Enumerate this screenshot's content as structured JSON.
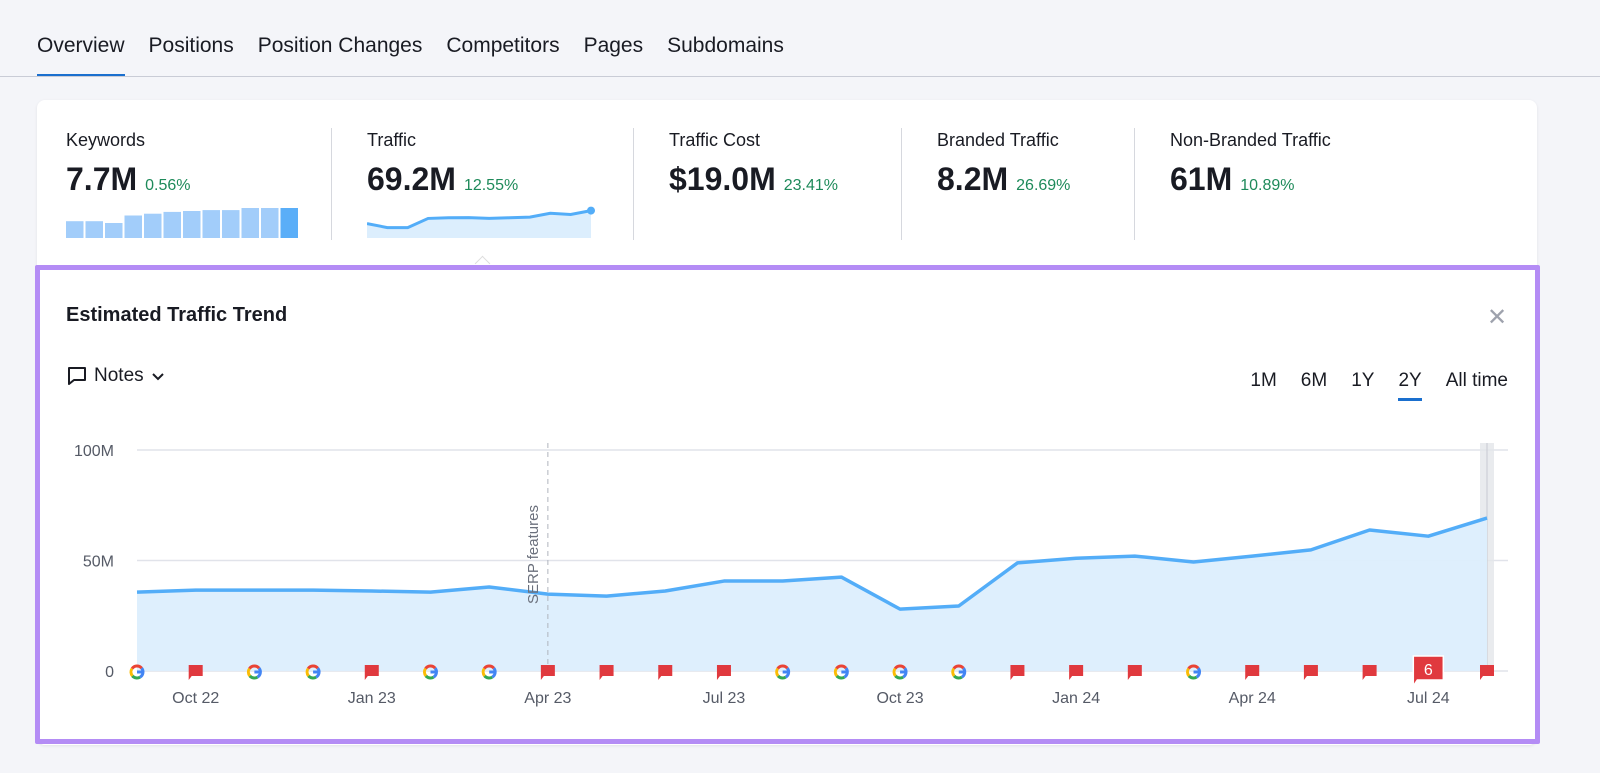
{
  "tabs": [
    "Overview",
    "Positions",
    "Position Changes",
    "Competitors",
    "Pages",
    "Subdomains"
  ],
  "active_tab": "Overview",
  "metrics": [
    {
      "label": "Keywords",
      "value": "7.7M",
      "change": "0.56%"
    },
    {
      "label": "Traffic",
      "value": "69.2M",
      "change": "12.55%"
    },
    {
      "label": "Traffic Cost",
      "value": "$19.0M",
      "change": "23.41%"
    },
    {
      "label": "Branded Traffic",
      "value": "8.2M",
      "change": "26.69%"
    },
    {
      "label": "Non-Branded Traffic",
      "value": "61M",
      "change": "10.89%"
    }
  ],
  "keywords_sparkbars": [
    0.56,
    0.56,
    0.5,
    0.75,
    0.81,
    0.87,
    0.9,
    0.93,
    0.93,
    1,
    1,
    1
  ],
  "traffic_sparkline": [
    36,
    33,
    33,
    40,
    40.5,
    40.6,
    40,
    40.5,
    41,
    44,
    43,
    46
  ],
  "trend": {
    "title": "Estimated Traffic Trend",
    "notes_label": "Notes",
    "close_icon": "close-icon",
    "ranges": [
      "1M",
      "6M",
      "1Y",
      "2Y",
      "All time"
    ],
    "active_range": "2Y"
  },
  "colors": {
    "accent": "#1a6fce",
    "line": "#53adf8",
    "fill": "#dceefd",
    "positive": "#1e8a5a",
    "note_flag": "#e0393e",
    "highlight": "#b48cf5"
  },
  "chart_data": {
    "type": "area",
    "title": "",
    "xlabel": "",
    "ylabel": "",
    "ylim": [
      0,
      100
    ],
    "y_ticks": [
      "0",
      "50M",
      "100M"
    ],
    "y_tick_values": [
      0,
      50,
      100
    ],
    "x": [
      "Sep 22",
      "Oct 22",
      "Nov 22",
      "Dec 22",
      "Jan 23",
      "Feb 23",
      "Mar 23",
      "Apr 23",
      "May 23",
      "Jun 23",
      "Jul 23",
      "Aug 23",
      "Sep 23",
      "Oct 23",
      "Nov 23",
      "Dec 23",
      "Jan 24",
      "Feb 24",
      "Mar 24",
      "Apr 24",
      "May 24",
      "Jun 24",
      "Jul 24",
      "Aug 24"
    ],
    "x_tick_labels": [
      "Oct 22",
      "Jan 23",
      "Apr 23",
      "Jul 23",
      "Oct 23",
      "Jan 24",
      "Apr 24",
      "Jul 24"
    ],
    "x_tick_index": [
      1,
      4,
      7,
      10,
      13,
      16,
      19,
      22
    ],
    "values_millions": [
      35.7,
      36.6,
      36.6,
      36.6,
      36.2,
      35.7,
      38,
      34.8,
      33.9,
      36.2,
      40.7,
      40.7,
      42.5,
      28,
      29.4,
      48.9,
      51,
      52,
      49.3,
      52,
      54.8,
      63.8,
      61,
      69.2
    ],
    "annotation": {
      "label": "SERP features",
      "index": 7
    },
    "markers": [
      "google",
      "note",
      "google",
      "google",
      "note",
      "google",
      "google",
      "note",
      "note",
      "note",
      "note",
      "google",
      "google",
      "google",
      "google",
      "note",
      "note",
      "note",
      "google",
      "note",
      "note",
      "note",
      "note",
      "note"
    ],
    "marker_badges": {
      "22": "6"
    },
    "grid": true
  }
}
